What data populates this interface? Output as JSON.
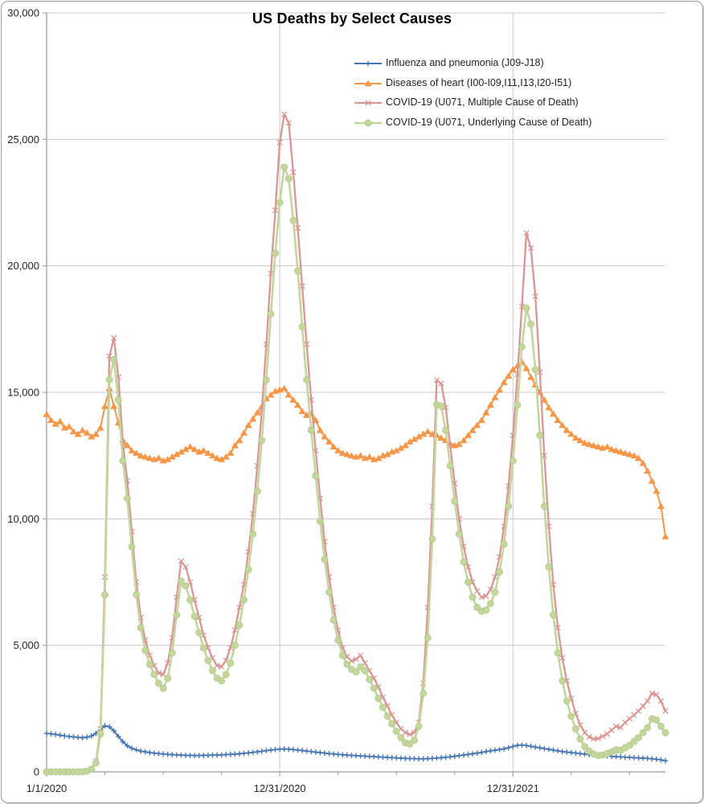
{
  "chart_data": {
    "type": "line",
    "title": "US Deaths by Select Causes",
    "x_axis": {
      "unit": "weeks since 1/1/2020 (weekly data points)",
      "total_weeks": 138,
      "tick_labels": [
        {
          "label": "1/1/2020",
          "week": 0
        },
        {
          "label": "12/31/2020",
          "week": 52
        },
        {
          "label": "12/31/2021",
          "week": 104
        }
      ],
      "minor_tick_weeks": [
        13,
        26,
        39,
        65,
        78,
        91,
        117,
        130
      ]
    },
    "y_axis": {
      "min": 0,
      "max": 30000,
      "step": 5000,
      "tick_labels": [
        "0",
        "5,000",
        "10,000",
        "15,000",
        "20,000",
        "25,000",
        "30,000"
      ]
    },
    "grid": {
      "horizontal": true,
      "vertical_at_year_ticks": true
    },
    "legend": {
      "position": "inside-top-right"
    },
    "series": [
      {
        "name": "Influenza and pneumonia (J09-J18)",
        "color": "#4576B5",
        "marker": "plus",
        "values": [
          1520,
          1500,
          1480,
          1450,
          1420,
          1400,
          1380,
          1360,
          1350,
          1370,
          1420,
          1520,
          1660,
          1820,
          1780,
          1620,
          1400,
          1190,
          1030,
          930,
          870,
          820,
          790,
          760,
          740,
          720,
          705,
          690,
          680,
          670,
          660,
          655,
          650,
          645,
          645,
          650,
          655,
          660,
          665,
          670,
          680,
          690,
          700,
          715,
          730,
          750,
          770,
          790,
          815,
          840,
          860,
          880,
          895,
          905,
          895,
          880,
          860,
          840,
          820,
          800,
          780,
          760,
          740,
          720,
          705,
          690,
          675,
          660,
          650,
          640,
          630,
          620,
          610,
          600,
          590,
          580,
          570,
          560,
          550,
          540,
          530,
          525,
          520,
          515,
          515,
          520,
          530,
          545,
          560,
          575,
          595,
          615,
          640,
          665,
          690,
          715,
          740,
          770,
          800,
          830,
          855,
          880,
          910,
          950,
          1000,
          1050,
          1060,
          1040,
          1010,
          980,
          950,
          920,
          890,
          860,
          830,
          800,
          780,
          760,
          740,
          720,
          700,
          685,
          670,
          655,
          640,
          625,
          610,
          600,
          590,
          580,
          570,
          560,
          550,
          540,
          530,
          515,
          500,
          475,
          440
        ]
      },
      {
        "name": "Diseases of heart (I00-I09,I11,I13,I20-I51)",
        "color": "#F79646",
        "marker": "triangle",
        "values": [
          14130,
          13900,
          13750,
          13850,
          13600,
          13650,
          13450,
          13350,
          13500,
          13400,
          13250,
          13350,
          13600,
          14450,
          15150,
          14450,
          13800,
          13100,
          12900,
          12700,
          12600,
          12500,
          12450,
          12400,
          12350,
          12400,
          12300,
          12350,
          12450,
          12550,
          12650,
          12750,
          12850,
          12750,
          12650,
          12700,
          12600,
          12500,
          12400,
          12350,
          12450,
          12600,
          12900,
          13100,
          13400,
          13700,
          13950,
          14200,
          14450,
          14750,
          14900,
          15050,
          15100,
          15160,
          14900,
          14700,
          14500,
          14250,
          14100,
          14150,
          13900,
          13500,
          13250,
          13050,
          12850,
          12700,
          12600,
          12550,
          12500,
          12450,
          12500,
          12400,
          12450,
          12350,
          12400,
          12500,
          12550,
          12650,
          12700,
          12800,
          12900,
          13050,
          13150,
          13250,
          13350,
          13450,
          13350,
          13300,
          13200,
          13100,
          12950,
          12900,
          12950,
          13100,
          13300,
          13500,
          13700,
          13900,
          14200,
          14500,
          14800,
          15100,
          15400,
          15650,
          15900,
          16050,
          16200,
          15950,
          15600,
          15300,
          15000,
          14700,
          14400,
          14150,
          13900,
          13700,
          13500,
          13350,
          13200,
          13100,
          13000,
          12950,
          12900,
          12850,
          12800,
          12850,
          12750,
          12700,
          12650,
          12600,
          12550,
          12500,
          12400,
          12200,
          11900,
          11500,
          11100,
          10500,
          9300
        ]
      },
      {
        "name": "COVID-19 (U071, Multiple Cause of Death)",
        "color": "#D99694",
        "marker": "x",
        "values": [
          0,
          0,
          0,
          0,
          0,
          0,
          0,
          0,
          0,
          40,
          130,
          420,
          1700,
          7700,
          16430,
          17150,
          15600,
          13000,
          11500,
          9500,
          7500,
          6100,
          5200,
          4600,
          4200,
          3900,
          3850,
          4300,
          5300,
          6900,
          8330,
          8100,
          7500,
          6800,
          6100,
          5400,
          4900,
          4500,
          4200,
          4150,
          4400,
          4900,
          5600,
          6500,
          7400,
          8700,
          10200,
          12100,
          14300,
          16900,
          19700,
          22200,
          24880,
          25990,
          25650,
          23700,
          21500,
          19200,
          16900,
          14700,
          12700,
          10800,
          9100,
          7700,
          6500,
          5600,
          4900,
          4550,
          4380,
          4450,
          4600,
          4300,
          4000,
          3700,
          3350,
          2950,
          2600,
          2250,
          1950,
          1700,
          1550,
          1480,
          1550,
          1950,
          3500,
          6500,
          10500,
          15480,
          15350,
          14400,
          12900,
          11400,
          10000,
          8900,
          8100,
          7500,
          7150,
          6900,
          6950,
          7200,
          7700,
          8500,
          9700,
          11300,
          13300,
          15700,
          18400,
          21300,
          20700,
          18800,
          15800,
          12500,
          9700,
          7400,
          5700,
          4500,
          3600,
          2900,
          2300,
          1850,
          1550,
          1380,
          1300,
          1320,
          1400,
          1500,
          1650,
          1800,
          1750,
          1950,
          2100,
          2250,
          2400,
          2600,
          2800,
          3100,
          3050,
          2800,
          2400
        ]
      },
      {
        "name": "COVID-19 (U071, Underlying Cause of Death)",
        "color": "#C3D69B",
        "marker": "circle",
        "values": [
          0,
          0,
          0,
          0,
          0,
          0,
          0,
          0,
          0,
          30,
          100,
          350,
          1500,
          7000,
          15500,
          16300,
          14700,
          12300,
          10800,
          8900,
          7000,
          5700,
          4800,
          4250,
          3850,
          3500,
          3300,
          3700,
          4700,
          6200,
          7540,
          7350,
          6800,
          6150,
          5500,
          4900,
          4400,
          4000,
          3700,
          3600,
          3850,
          4300,
          5000,
          5800,
          6800,
          8000,
          9400,
          11100,
          13100,
          15500,
          18100,
          20500,
          22500,
          23900,
          23450,
          21800,
          19800,
          17600,
          15500,
          13500,
          11700,
          9900,
          8400,
          7100,
          6000,
          5200,
          4600,
          4250,
          4050,
          3950,
          4150,
          4000,
          3650,
          3300,
          2900,
          2550,
          2200,
          1900,
          1600,
          1350,
          1150,
          1100,
          1250,
          1800,
          3100,
          5300,
          9200,
          14520,
          14460,
          13500,
          12100,
          10700,
          9400,
          8300,
          7500,
          6900,
          6500,
          6350,
          6400,
          6650,
          7100,
          7900,
          9000,
          10500,
          12300,
          14500,
          16800,
          18330,
          17700,
          15900,
          13300,
          10500,
          8100,
          6200,
          4700,
          3600,
          2800,
          2200,
          1700,
          1300,
          1000,
          820,
          700,
          650,
          670,
          720,
          790,
          870,
          850,
          950,
          1050,
          1200,
          1350,
          1550,
          1750,
          2100,
          2050,
          1800,
          1550
        ]
      }
    ]
  }
}
